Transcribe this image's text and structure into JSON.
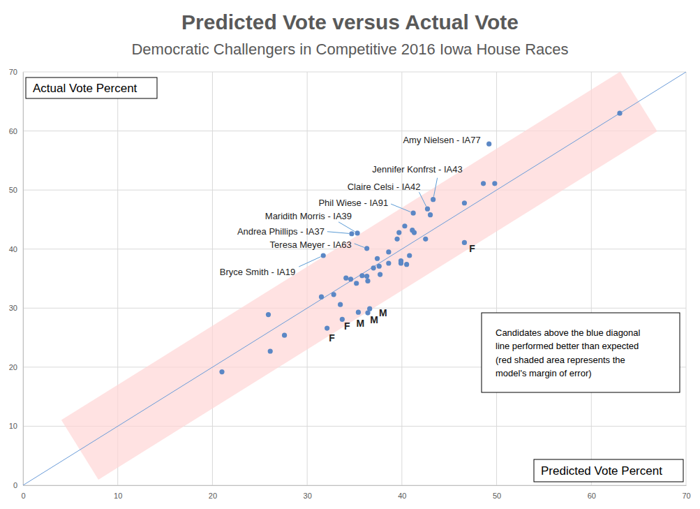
{
  "chart_data": {
    "type": "scatter",
    "title": "Predicted Vote versus Actual Vote",
    "subtitle": "Democratic Challengers in Competitive 2016 Iowa House Races",
    "x_label": "Predicted Vote Percent",
    "y_label": "Actual Vote Percent",
    "x": [
      63.0,
      49.2,
      48.6,
      49.8,
      43.3,
      42.7,
      43.0,
      46.6,
      41.2,
      40.3,
      39.7,
      39.5,
      41.1,
      41.3,
      42.5,
      46.6,
      35.3,
      34.7,
      36.3,
      31.7,
      38.6,
      37.4,
      40.8,
      39.9,
      39.9,
      40.5,
      38.6,
      37.6,
      37.0,
      37.7,
      35.8,
      36.3,
      34.1,
      34.6,
      35.2,
      36.4,
      32.8,
      31.5,
      33.5,
      36.6,
      36.4,
      35.4,
      33.7,
      32.1,
      25.9,
      27.6,
      26.1,
      21.0
    ],
    "series": [
      {
        "color": "#5b87c5",
        "marker": "circle",
        "values": [
          63.0,
          57.8,
          51.1,
          51.1,
          48.4,
          46.8,
          45.8,
          47.8,
          46.1,
          43.9,
          42.8,
          41.7,
          43.2,
          42.8,
          41.7,
          41.1,
          42.7,
          42.6,
          40.1,
          38.9,
          39.5,
          38.4,
          38.9,
          38.0,
          37.6,
          37.4,
          37.6,
          37.1,
          36.8,
          35.7,
          35.5,
          35.4,
          35.1,
          34.9,
          34.2,
          34.6,
          32.3,
          31.9,
          30.6,
          29.9,
          29.2,
          29.3,
          28.1,
          26.6,
          28.9,
          25.4,
          22.7,
          19.2
        ],
        "point_labels": [
          null,
          "Amy Nielsen - IA77",
          null,
          null,
          "Jennifer Konfrst - IA43",
          "Claire Celsi - IA42",
          null,
          null,
          "Phil Wiese - IA91",
          null,
          null,
          null,
          null,
          null,
          null,
          "F",
          "Maridith Morris - IA39",
          "Andrea Phillips - IA37",
          "Teresa Meyer - IA63",
          "Bryce Smith - IA19",
          null,
          null,
          null,
          null,
          null,
          null,
          null,
          null,
          null,
          null,
          null,
          null,
          null,
          null,
          null,
          null,
          null,
          null,
          null,
          "M",
          "M",
          "M",
          "F",
          "F",
          null,
          null,
          null,
          null
        ]
      }
    ],
    "xlim": [
      0,
      70
    ],
    "ylim": [
      0,
      70
    ],
    "xticks": [
      0,
      10,
      20,
      30,
      40,
      50,
      60,
      70
    ],
    "yticks": [
      0,
      10,
      20,
      30,
      40,
      50,
      60,
      70
    ],
    "grid": true,
    "margin_of_error": 7,
    "band_range": [
      6,
      65
    ],
    "note": [
      "Candidates above the blue diagonal",
      "line performed better than expected",
      "(red shaded area represents the",
      "model's margin of error)"
    ]
  }
}
